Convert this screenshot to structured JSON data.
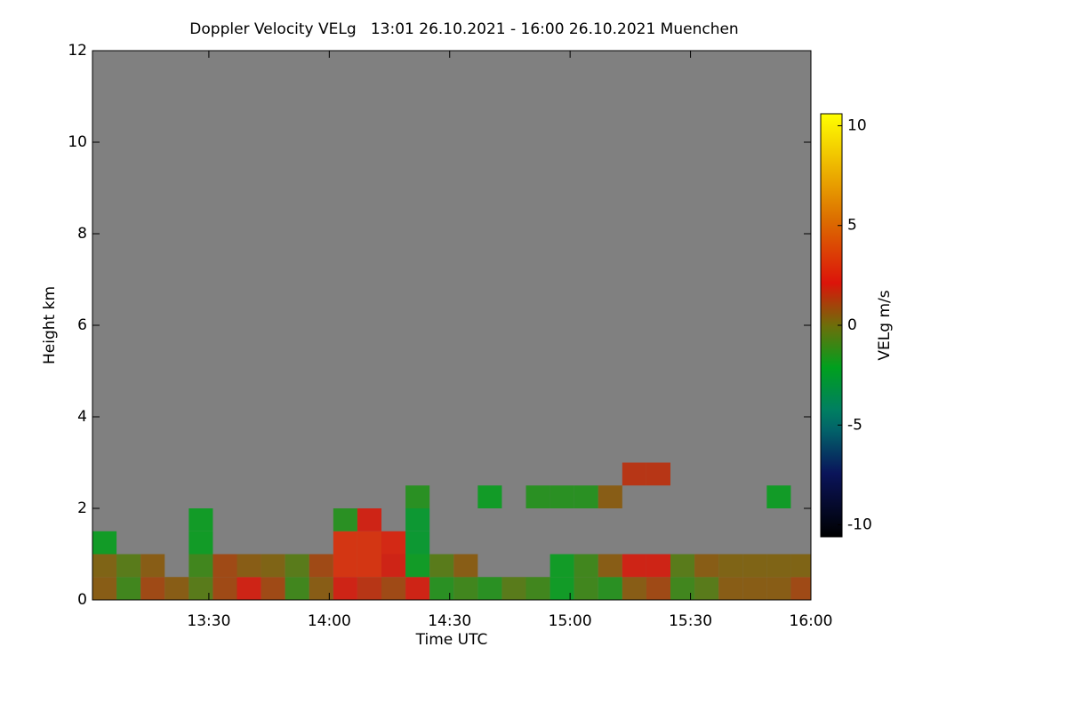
{
  "chart_data": {
    "type": "heatmap",
    "title": "Doppler Velocity VELg   13:01 26.10.2021 - 16:00 26.10.2021 Muenchen",
    "x_label": "Time UTC",
    "y_label": "Height km",
    "colorbar_label": "VELg m/s",
    "xlim": [
      781,
      960
    ],
    "xticks": [
      {
        "value": 810,
        "label": "13:30"
      },
      {
        "value": 840,
        "label": "14:00"
      },
      {
        "value": 870,
        "label": "14:30"
      },
      {
        "value": 900,
        "label": "15:00"
      },
      {
        "value": 930,
        "label": "15:30"
      },
      {
        "value": 960,
        "label": "16:00"
      }
    ],
    "ylim": [
      0,
      12
    ],
    "yticks": [
      0,
      2,
      4,
      6,
      8,
      10,
      12
    ],
    "clim": [
      -10.6,
      10.6
    ],
    "cticks": [
      -10,
      -5,
      0,
      5,
      10
    ],
    "x": [
      781,
      787,
      793,
      799,
      805,
      811,
      817,
      823,
      829,
      835,
      841,
      847,
      853,
      859,
      865,
      871,
      877,
      883,
      889,
      895,
      901,
      907,
      913,
      919,
      925,
      931,
      937,
      943,
      949,
      955
    ],
    "y": [
      0,
      0.5,
      1,
      1.5,
      2,
      2.5
    ],
    "values": [
      [
        0.5,
        -1,
        1,
        0.5,
        -0.5,
        1,
        2,
        1,
        -1,
        0.5,
        2,
        1.5,
        1,
        2,
        -1.5,
        -1,
        -1.5,
        -0.5,
        -1,
        -2,
        -1,
        -1.5,
        0.5,
        1,
        -1,
        -0.5,
        0.5,
        0.5,
        0.5,
        1
      ],
      [
        0.3,
        -0.5,
        0.5,
        null,
        -1,
        1,
        0.5,
        0.3,
        -0.5,
        1,
        3,
        3,
        2,
        -2,
        -0.5,
        0.5,
        null,
        null,
        null,
        -2,
        -1,
        0.5,
        2,
        2,
        -0.5,
        0.5,
        0.3,
        0.3,
        0.3,
        0.3
      ],
      [
        -2,
        null,
        null,
        null,
        -2,
        null,
        null,
        null,
        null,
        null,
        3,
        3,
        2.5,
        -2.5,
        null,
        null,
        null,
        null,
        null,
        null,
        null,
        null,
        null,
        null,
        null,
        null,
        null,
        null,
        null,
        null
      ],
      [
        null,
        null,
        null,
        null,
        -2,
        null,
        null,
        null,
        null,
        null,
        -1.5,
        2,
        null,
        -2.5,
        null,
        null,
        null,
        null,
        null,
        null,
        null,
        null,
        null,
        null,
        null,
        null,
        null,
        null,
        null,
        null
      ],
      [
        null,
        null,
        null,
        null,
        null,
        null,
        null,
        null,
        null,
        null,
        null,
        null,
        null,
        -1.5,
        null,
        null,
        -2,
        null,
        -1.5,
        -1.5,
        -1.5,
        0.5,
        null,
        null,
        null,
        null,
        null,
        null,
        -2,
        null
      ],
      [
        null,
        null,
        null,
        null,
        null,
        null,
        null,
        null,
        null,
        null,
        null,
        null,
        null,
        null,
        null,
        null,
        null,
        null,
        null,
        null,
        null,
        null,
        1.5,
        1.5,
        null,
        null,
        null,
        null,
        null,
        null
      ]
    ]
  }
}
